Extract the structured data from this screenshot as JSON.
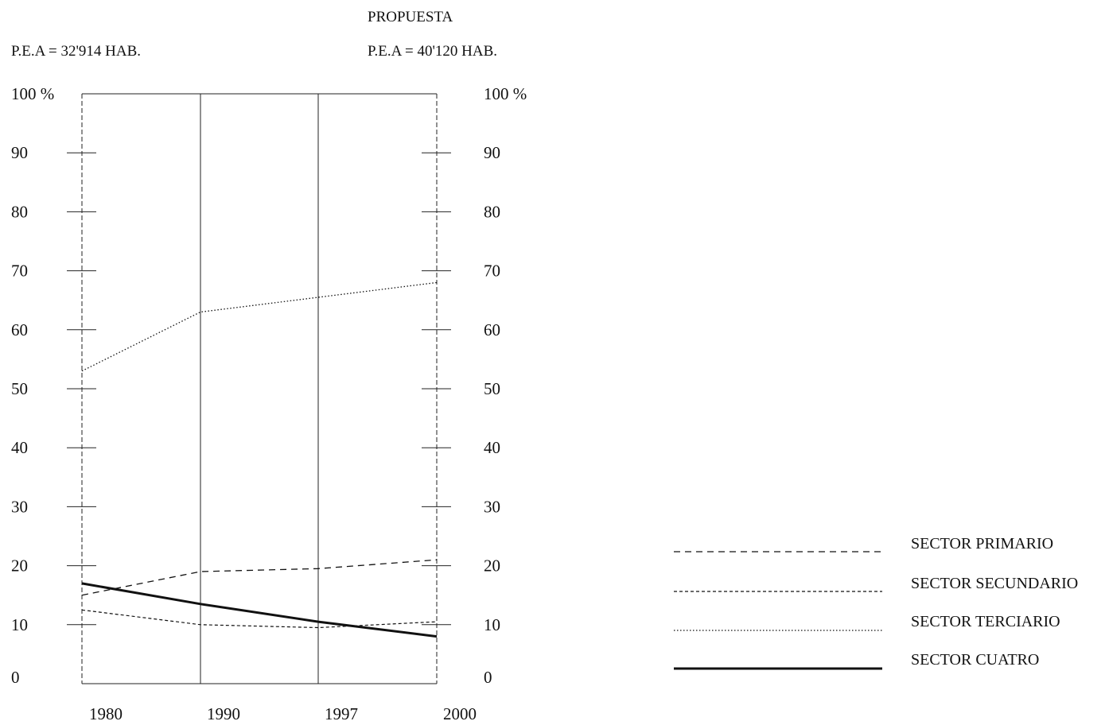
{
  "header": {
    "top_title": "PROPUESTA",
    "left_pea": "P.E.A = 32'914 HAB.",
    "right_pea": "P.E.A = 40'120 HAB."
  },
  "chart_data": {
    "type": "line",
    "x": [
      "1980",
      "1990",
      "1997",
      "2000"
    ],
    "y_ticks": [
      "0",
      "10",
      "20",
      "30",
      "40",
      "50",
      "60",
      "70",
      "80",
      "90",
      "100 %"
    ],
    "ylim": [
      0,
      100
    ],
    "grid": "vertical lines at each year",
    "legend_position": "bottom-right",
    "series": [
      {
        "name": "SECTOR PRIMARIO",
        "style": "dashed",
        "values": [
          15,
          19,
          19.5,
          21
        ]
      },
      {
        "name": "SECTOR SECUNDARIO",
        "style": "fine-dashed",
        "values": [
          12.5,
          10,
          9.5,
          10.5
        ]
      },
      {
        "name": "SECTOR TERCIARIO",
        "style": "dotted",
        "values": [
          53,
          63,
          65.5,
          68
        ]
      },
      {
        "name": "SECTOR CUATRO",
        "style": "solid-thick",
        "values": [
          17,
          13.5,
          10.5,
          8
        ]
      }
    ]
  }
}
